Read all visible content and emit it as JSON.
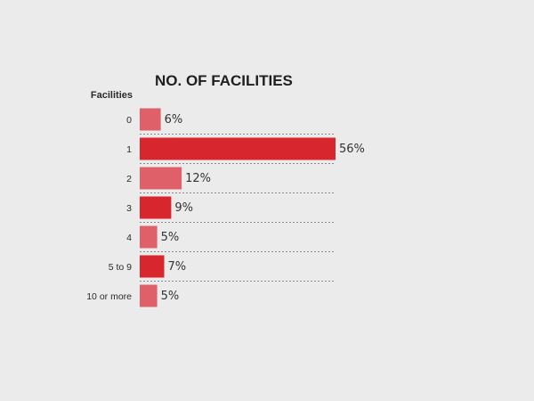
{
  "chart_data": {
    "type": "bar",
    "orientation": "horizontal",
    "title": "NO. OF FACILITIES",
    "ylabel": "Facilities",
    "xlabel": "",
    "categories": [
      "0",
      "1",
      "2",
      "3",
      "4",
      "5 to 9",
      "10 or more"
    ],
    "values": [
      6,
      56,
      12,
      9,
      5,
      7,
      5
    ],
    "value_labels": [
      "6%",
      "56%",
      "12%",
      "9%",
      "5%",
      "7%",
      "5%"
    ],
    "unit": "%",
    "xlim": [
      0,
      56
    ],
    "grid": false,
    "legend": "none",
    "colors": {
      "light": "#e0606a",
      "dark": "#d8262e"
    },
    "bar_color_keys": [
      "light",
      "dark",
      "light",
      "dark",
      "light",
      "dark",
      "light"
    ]
  }
}
